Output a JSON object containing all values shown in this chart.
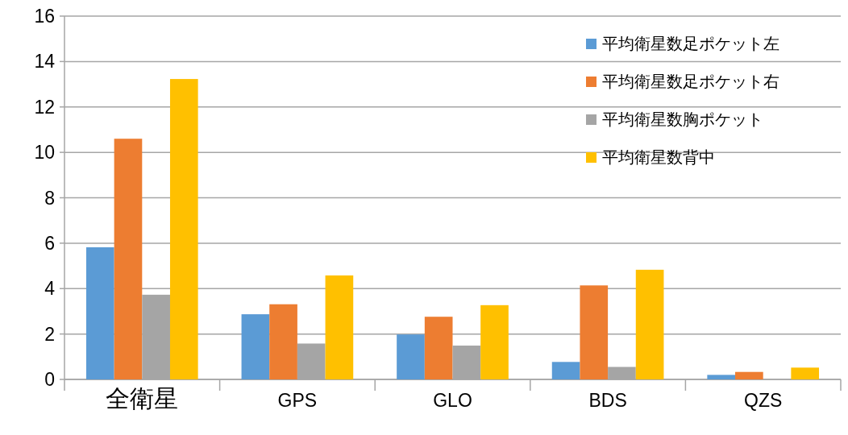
{
  "chart_data": {
    "type": "bar",
    "categories": [
      "全衛星",
      "GPS",
      "GLO",
      "BDS",
      "QZS"
    ],
    "series": [
      {
        "name": "平均衛星数足ポケット左",
        "color": "#5b9bd5",
        "values": [
          5.82,
          2.87,
          1.98,
          0.77,
          0.2
        ]
      },
      {
        "name": "平均衛星数足ポケット右",
        "color": "#ed7d31",
        "values": [
          10.6,
          3.31,
          2.76,
          4.14,
          0.33
        ]
      },
      {
        "name": "平均衛星数胸ポケット",
        "color": "#a5a5a5",
        "values": [
          3.73,
          1.58,
          1.49,
          0.55,
          0
        ]
      },
      {
        "name": "平均衛星数背中",
        "color": "#ffc000",
        "values": [
          13.23,
          4.58,
          3.27,
          4.83,
          0.52
        ]
      }
    ],
    "ylim": [
      0,
      16
    ],
    "yticks": [
      0,
      2,
      4,
      6,
      8,
      10,
      12,
      14,
      16
    ],
    "grid": "y",
    "legend": "top right"
  }
}
